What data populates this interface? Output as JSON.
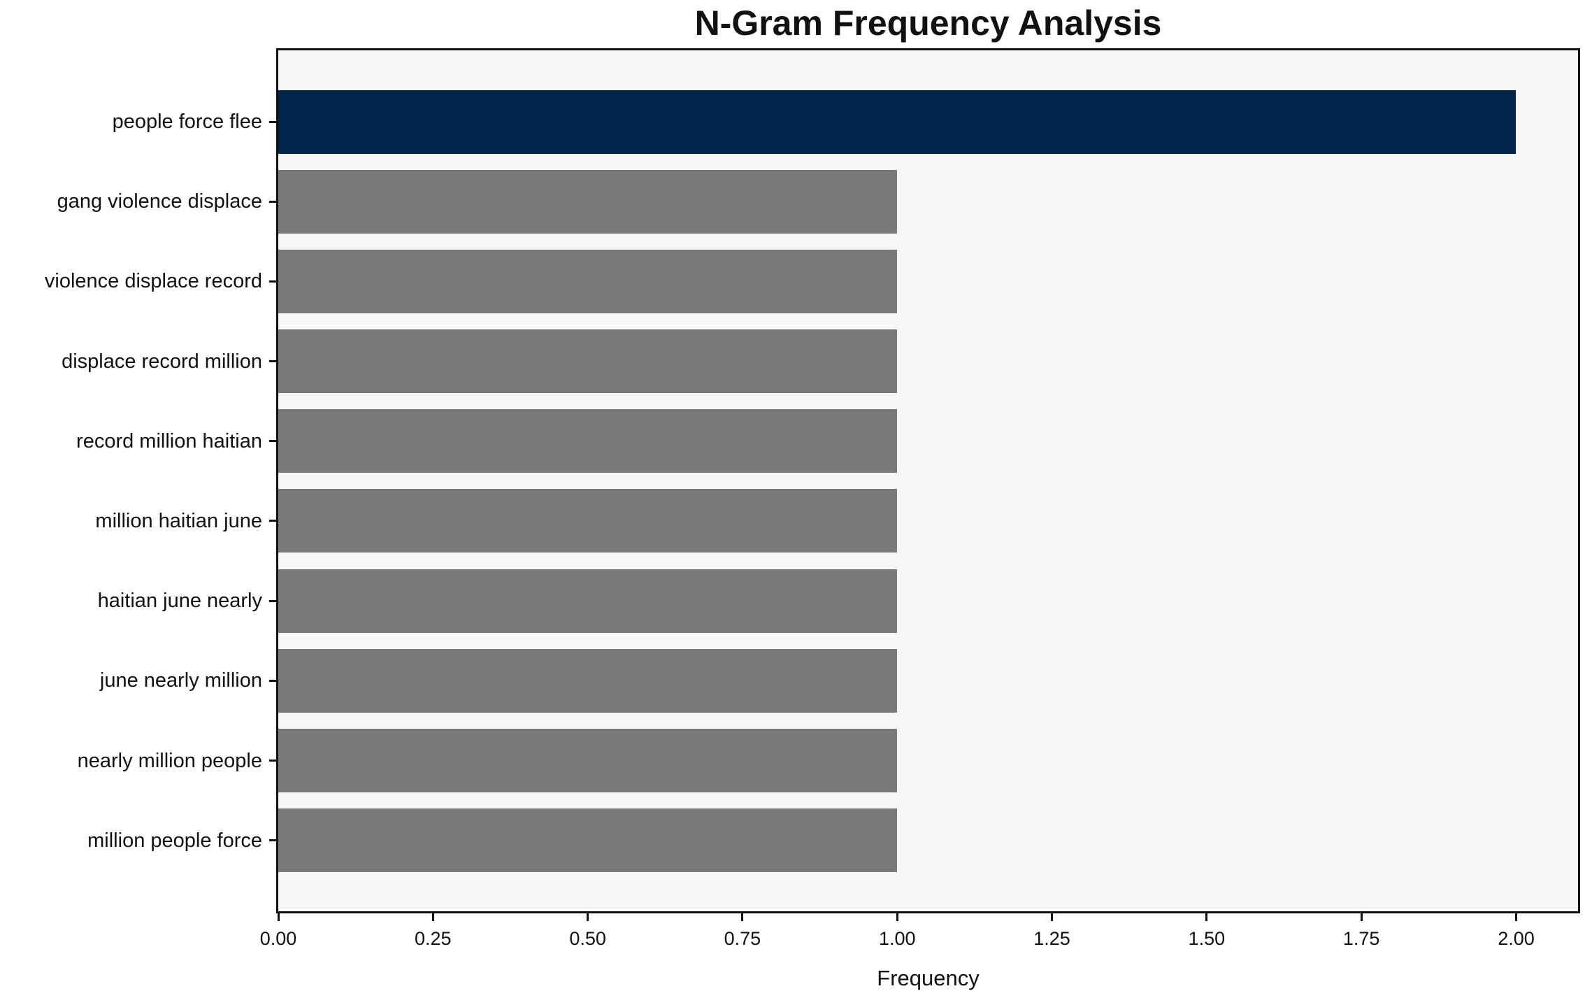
{
  "chart_data": {
    "type": "bar",
    "orientation": "horizontal",
    "title": "N-Gram Frequency Analysis",
    "xlabel": "Frequency",
    "ylabel": "",
    "categories": [
      "people force flee",
      "gang violence displace",
      "violence displace record",
      "displace record million",
      "record million haitian",
      "million haitian june",
      "haitian june nearly",
      "june nearly million",
      "nearly million people",
      "million people force"
    ],
    "values": [
      2,
      1,
      1,
      1,
      1,
      1,
      1,
      1,
      1,
      1
    ],
    "xlim": [
      0,
      2.1
    ],
    "xticks": [
      "0.00",
      "0.25",
      "0.50",
      "0.75",
      "1.00",
      "1.25",
      "1.50",
      "1.75",
      "2.00"
    ],
    "grid": false,
    "legend_position": "none",
    "highlight_index": 0,
    "colors": {
      "highlight_bar": "#02234c",
      "bar": "#7a7a78",
      "plot_background": "#f7f7f7",
      "figure_background": "#ffffff",
      "spine": "#111111",
      "text": "#111111"
    }
  }
}
